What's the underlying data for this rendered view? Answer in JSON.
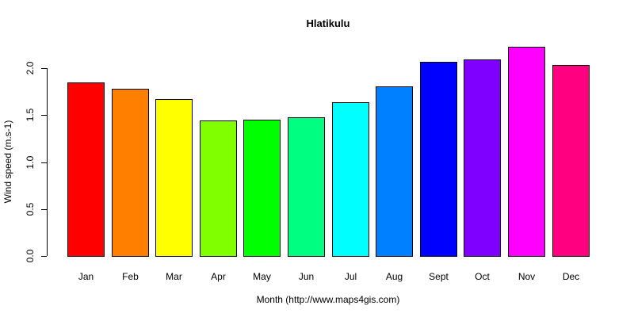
{
  "chart_data": {
    "type": "bar",
    "title": "Hlatikulu",
    "xlabel": "Month (http://www.maps4gis.com)",
    "ylabel": "Wind speed (m.s-1)",
    "categories": [
      "Jan",
      "Feb",
      "Mar",
      "Apr",
      "May",
      "Jun",
      "Jul",
      "Aug",
      "Sept",
      "Oct",
      "Nov",
      "Dec"
    ],
    "values": [
      1.85,
      1.78,
      1.67,
      1.44,
      1.45,
      1.48,
      1.64,
      1.81,
      2.07,
      2.09,
      2.23,
      2.03
    ],
    "colors": [
      "#FF0000",
      "#FF8000",
      "#FFFF00",
      "#80FF00",
      "#00FF00",
      "#00FF80",
      "#00FFFF",
      "#0080FF",
      "#0000FF",
      "#8000FF",
      "#FF00FF",
      "#FF0080"
    ],
    "ylim": [
      0,
      2.0
    ],
    "yticks": [
      "0.0",
      "0.5",
      "1.0",
      "1.5",
      "2.0"
    ],
    "grid": false,
    "legend": null
  }
}
